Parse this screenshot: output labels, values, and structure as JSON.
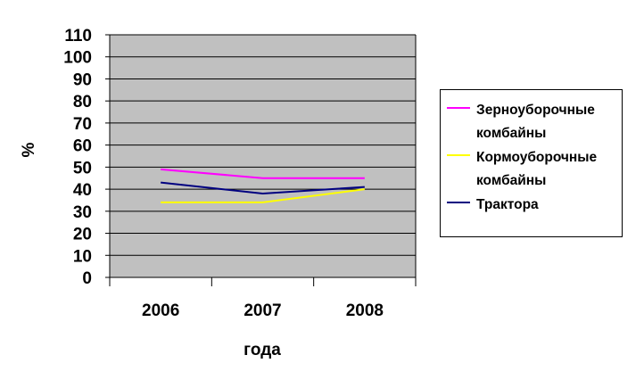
{
  "chart_data": {
    "type": "line",
    "categories": [
      "2006",
      "2007",
      "2008"
    ],
    "series": [
      {
        "name": "Зерноуборочные комбайны",
        "values": [
          49,
          45,
          45
        ],
        "color": "#FF00FF"
      },
      {
        "name": "Кормоуборочные комбайны",
        "values": [
          34,
          34,
          40
        ],
        "color": "#FFFF00"
      },
      {
        "name": "Трактора",
        "values": [
          43,
          38,
          41
        ],
        "color": "#000080"
      }
    ],
    "title": "",
    "xlabel": "года",
    "ylabel": "%",
    "ylim": [
      0,
      110
    ],
    "yticks": [
      "0",
      "10",
      "20",
      "30",
      "40",
      "50",
      "60",
      "70",
      "80",
      "90",
      "100",
      "110"
    ],
    "grid": true,
    "plot_background": "#C0C0C0",
    "legend_position": "right"
  }
}
